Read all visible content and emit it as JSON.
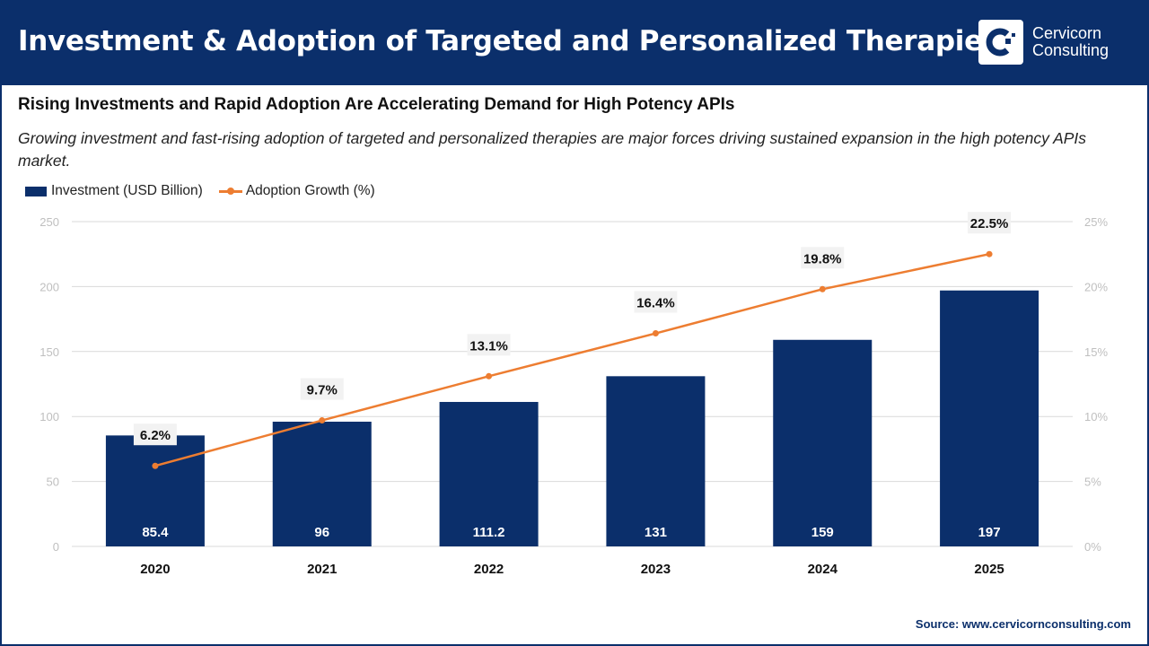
{
  "header": {
    "title": "Investment & Adoption of Targeted and Personalized Therapies",
    "logo_text": [
      "Cervicorn",
      "Consulting"
    ]
  },
  "subtitle": "Rising Investments and Rapid Adoption Are Accelerating Demand for High Potency APIs",
  "description": "Growing investment and fast-rising adoption of targeted and personalized therapies are major forces driving sustained expansion in the high potency APIs market.",
  "source": "Source: www.cervicornconsulting.com",
  "colors": {
    "bar": "#0b2f6b",
    "line": "#ed7d31",
    "header": "#0b2f6b"
  },
  "chart_data": {
    "type": "bar+line",
    "categories": [
      "2020",
      "2021",
      "2022",
      "2023",
      "2024",
      "2025"
    ],
    "series": [
      {
        "name": "Investment (USD Billion)",
        "type": "bar",
        "axis": "left",
        "values": [
          85.4,
          96,
          111.2,
          131,
          159,
          197
        ],
        "labels": [
          "85.4",
          "96",
          "111.2",
          "131",
          "159",
          "197"
        ]
      },
      {
        "name": "Adoption Growth (%)",
        "type": "line",
        "axis": "right",
        "values": [
          6.2,
          9.7,
          13.1,
          16.4,
          19.8,
          22.5
        ],
        "labels": [
          "6.2%",
          "9.7%",
          "13.1%",
          "16.4%",
          "19.8%",
          "22.5%"
        ]
      }
    ],
    "ylim_left": [
      0,
      250
    ],
    "yticks_left": [
      "0",
      "50",
      "100",
      "150",
      "200",
      "250"
    ],
    "ylim_right": [
      0,
      25
    ],
    "yticks_right": [
      "0%",
      "5%",
      "10%",
      "15%",
      "20%",
      "25%"
    ],
    "grid": true,
    "legend": "top-left"
  }
}
